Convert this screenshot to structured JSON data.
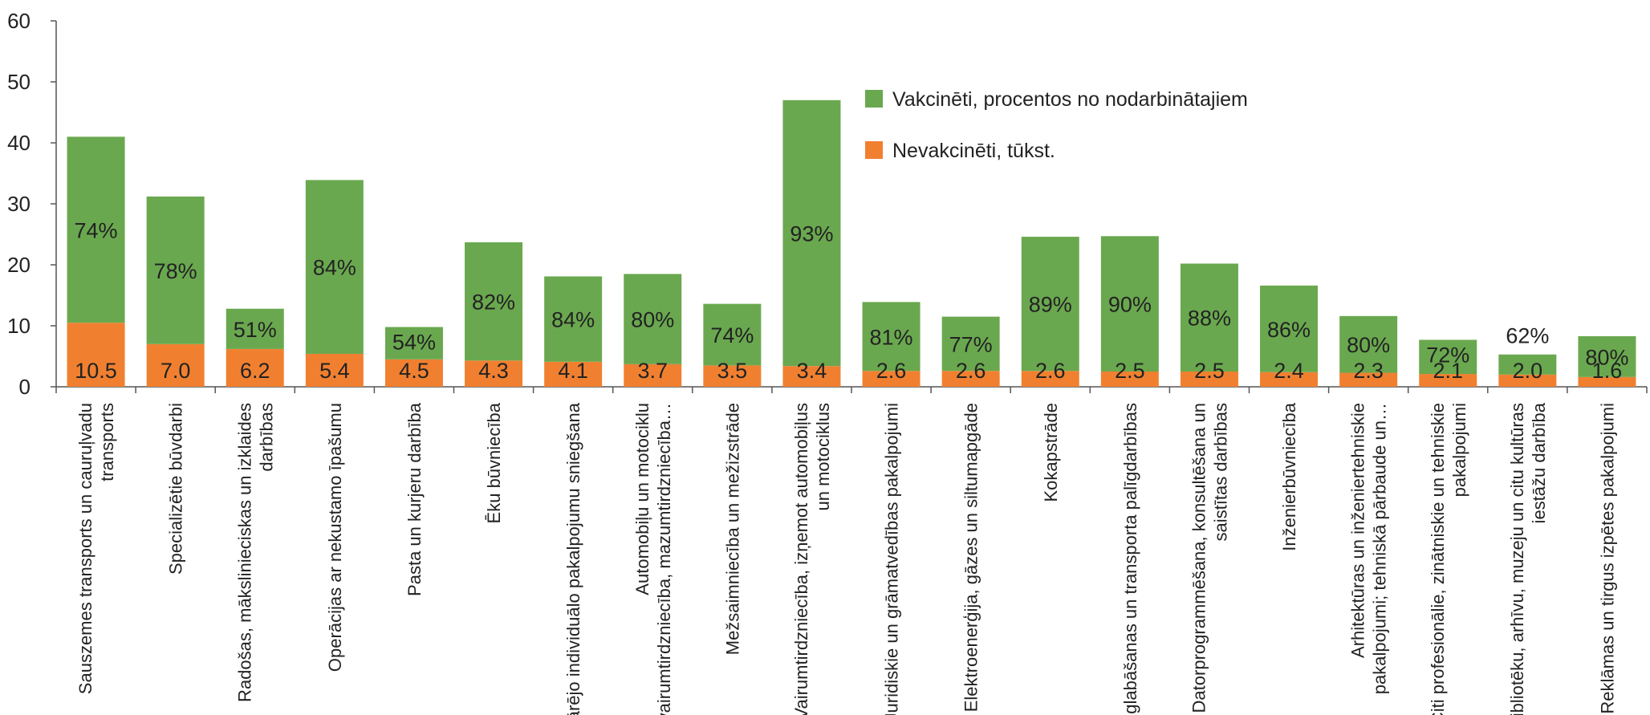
{
  "chart_data": {
    "type": "bar",
    "stacked": true,
    "ylim": [
      0,
      60
    ],
    "yticks": [
      0,
      10,
      20,
      30,
      40,
      50,
      60
    ],
    "grid": false,
    "legend_position": "top-center",
    "colors": {
      "vaccinated": "#6aa84f",
      "unvaccinated": "#f08030"
    },
    "categories": [
      [
        "Sauszemes transports un cauruļvadu",
        "transports"
      ],
      [
        "Specializētie būvdarbi"
      ],
      [
        "Radošas, mākslinieciskas un izklaides",
        "darbības"
      ],
      [
        "Operācijas ar nekustamo īpašumu"
      ],
      [
        "Pasta un kurjeru darbība"
      ],
      [
        "Ēku būvniecība"
      ],
      [
        "Pārējo individuālo pakalpojumu sniegšana"
      ],
      [
        "Automobiļu un motociklu",
        "vairumtirdzniecība, mazumtirdzniecība…"
      ],
      [
        "Mežsaimniecība un mežizstrāde"
      ],
      [
        "Vairumtirdzniecība, izņemot automobiļus",
        "un motociklus"
      ],
      [
        "Juridiskie un grāmatvedības pakalpojumi"
      ],
      [
        "Elektroenerģija, gāzes un siltumapgāde"
      ],
      [
        "Kokapstrāde"
      ],
      [
        "Uzglabāšanas un transporta palīgdarbības"
      ],
      [
        "Datorprogrammēšana, konsultēšana un",
        "saistītas darbības"
      ],
      [
        "Inženierbūvniecība"
      ],
      [
        "Arhitektūras un inženiertehniskie",
        "pakalpojumi; tehniskā pārbaude un…"
      ],
      [
        "Citi profesionālie, zinātniskie un tehniskie",
        "pakalpojumi"
      ],
      [
        "Bibliotēku, arhīvu, muzeju un citu kultūras",
        "iestāžu darbība"
      ],
      [
        "Reklāmas un tirgus izpētes pakalpojumi"
      ]
    ],
    "series": [
      {
        "name": "Nevakcinēti, tūkst.",
        "key": "unvaccinated",
        "values": [
          10.5,
          7.0,
          6.2,
          5.4,
          4.5,
          4.3,
          4.1,
          3.7,
          3.5,
          3.4,
          2.6,
          2.6,
          2.6,
          2.5,
          2.5,
          2.4,
          2.3,
          2.1,
          2.0,
          1.6
        ],
        "labels": [
          "10.5",
          "7.0",
          "6.2",
          "5.4",
          "4.5",
          "4.3",
          "4.1",
          "3.7",
          "3.5",
          "3.4",
          "2.6",
          "2.6",
          "2.6",
          "2.5",
          "2.5",
          "2.4",
          "2.3",
          "2.1",
          "2.0",
          "1.6"
        ]
      },
      {
        "name": "Vakcinēti, procentos no nodarbinātajiem",
        "key": "vaccinated",
        "values": [
          30.5,
          24.2,
          6.6,
          28.5,
          5.3,
          19.4,
          14.0,
          14.8,
          10.1,
          43.6,
          11.3,
          8.9,
          22.0,
          22.2,
          17.7,
          14.2,
          9.3,
          5.6,
          3.3,
          6.7
        ],
        "labels": [
          "74%",
          "78%",
          "51%",
          "84%",
          "54%",
          "82%",
          "84%",
          "80%",
          "74%",
          "93%",
          "81%",
          "77%",
          "89%",
          "90%",
          "88%",
          "86%",
          "80%",
          "72%",
          "62%",
          "80%"
        ]
      }
    ],
    "legend": [
      {
        "key": "vaccinated",
        "label": "Vakcinēti, procentos no nodarbinātajiem"
      },
      {
        "key": "unvaccinated",
        "label": "Nevakcinēti, tūkst."
      }
    ]
  }
}
